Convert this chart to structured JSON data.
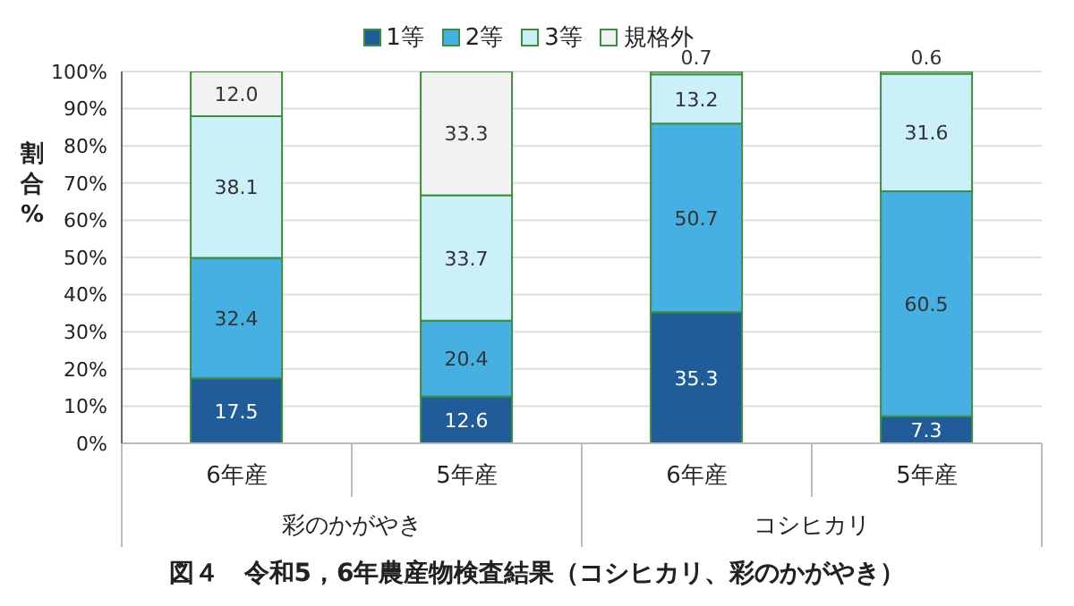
{
  "chart_data": {
    "type": "bar",
    "stacked": true,
    "title": "図４　令和5，6年農産物検査結果（コシヒカリ、彩のかがやき）",
    "ylabel": "割合%",
    "categories": [
      "6年産",
      "5年産",
      "6年産",
      "5年産"
    ],
    "annotations": [
      "彩のかがやき",
      "コシヒカリ"
    ],
    "series": [
      {
        "name": "1等",
        "color": "#1f5c99",
        "values": [
          17.5,
          12.6,
          35.3,
          7.3
        ],
        "value_labels": [
          "17.5",
          "12.6",
          "35.3",
          "7.3"
        ]
      },
      {
        "name": "2等",
        "color": "#45b0e1",
        "values": [
          32.4,
          20.4,
          50.7,
          60.5
        ],
        "value_labels": [
          "32.4",
          "20.4",
          "50.7",
          "60.5"
        ]
      },
      {
        "name": "3等",
        "color": "#ccf0fa",
        "values": [
          38.1,
          33.7,
          13.2,
          31.6
        ],
        "value_labels": [
          "38.1",
          "33.7",
          "13.2",
          "31.6"
        ]
      },
      {
        "name": "規格外",
        "color": "#f2f2f2",
        "values": [
          12.0,
          33.3,
          0.7,
          0.6
        ],
        "value_labels": [
          "12.0",
          "33.3",
          "0.7",
          "0.6"
        ]
      }
    ],
    "ylim": [
      0,
      100
    ],
    "yticks": [
      {
        "value": 0,
        "label": "0%"
      },
      {
        "value": 10,
        "label": "10%"
      },
      {
        "value": 20,
        "label": "20%"
      },
      {
        "value": 30,
        "label": "30%"
      },
      {
        "value": 40,
        "label": "40%"
      },
      {
        "value": 50,
        "label": "50%"
      },
      {
        "value": 60,
        "label": "60%"
      },
      {
        "value": 70,
        "label": "70%"
      },
      {
        "value": 80,
        "label": "80%"
      },
      {
        "value": 90,
        "label": "90%"
      },
      {
        "value": 100,
        "label": "100%"
      }
    ],
    "grid": "y",
    "legend": "top"
  }
}
